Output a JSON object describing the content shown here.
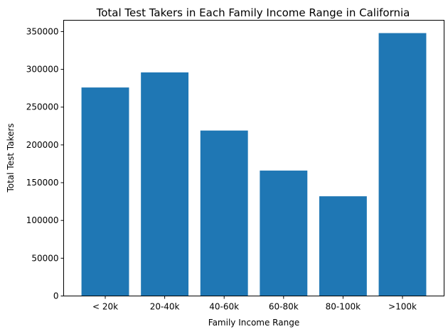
{
  "chart_data": {
    "type": "bar",
    "title": "Total Test Takers in Each Family Income Range in California",
    "xlabel": "Family Income Range",
    "ylabel": "Total Test Takers",
    "categories": [
      "< 20k",
      "20-40k",
      "40-60k",
      "60-80k",
      "80-100k",
      ">100k"
    ],
    "values": [
      276000,
      296000,
      219000,
      166000,
      132000,
      348000
    ],
    "ylim": [
      0,
      365000
    ],
    "yticks": [
      0,
      50000,
      100000,
      150000,
      200000,
      250000,
      300000,
      350000
    ],
    "grid": false,
    "colors": {
      "bar": "#1f77b4"
    }
  }
}
